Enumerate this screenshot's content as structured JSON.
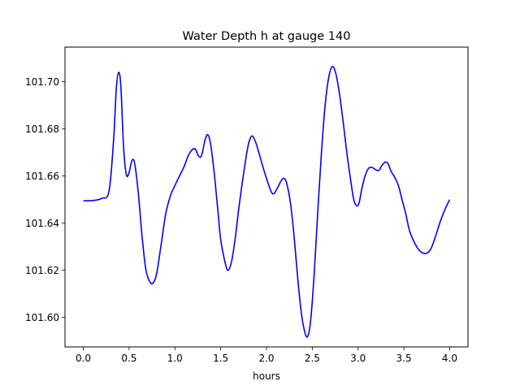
{
  "chart_data": {
    "type": "line",
    "title": "Water Depth h at gauge 140",
    "xlabel": "hours",
    "ylabel": "",
    "xlim": [
      -0.2,
      4.2
    ],
    "ylim": [
      101.5875,
      101.7147
    ],
    "grid": false,
    "xticks": [
      0.0,
      0.5,
      1.0,
      1.5,
      2.0,
      2.5,
      3.0,
      3.5,
      4.0
    ],
    "xtick_labels": [
      "0.0",
      "0.5",
      "1.0",
      "1.5",
      "2.0",
      "2.5",
      "3.0",
      "3.5",
      "4.0"
    ],
    "yticks": [
      101.6,
      101.62,
      101.64,
      101.66,
      101.68,
      101.7
    ],
    "ytick_labels": [
      "101.60",
      "101.62",
      "101.64",
      "101.66",
      "101.68",
      "101.70"
    ],
    "series": [
      {
        "color": "#0000ff",
        "points": [
          [
            0.0,
            101.6495
          ],
          [
            0.1,
            101.6496
          ],
          [
            0.2,
            101.6505
          ],
          [
            0.28,
            101.6535
          ],
          [
            0.33,
            101.675
          ],
          [
            0.36,
            101.697
          ],
          [
            0.385,
            101.704
          ],
          [
            0.41,
            101.698
          ],
          [
            0.44,
            101.672
          ],
          [
            0.47,
            101.6605
          ],
          [
            0.5,
            101.6615
          ],
          [
            0.53,
            101.6665
          ],
          [
            0.56,
            101.6655
          ],
          [
            0.6,
            101.653
          ],
          [
            0.64,
            101.635
          ],
          [
            0.68,
            101.621
          ],
          [
            0.72,
            101.6155
          ],
          [
            0.76,
            101.6145
          ],
          [
            0.8,
            101.6185
          ],
          [
            0.85,
            101.631
          ],
          [
            0.9,
            101.644
          ],
          [
            0.95,
            101.6515
          ],
          [
            1.0,
            101.656
          ],
          [
            1.05,
            101.66
          ],
          [
            1.1,
            101.664
          ],
          [
            1.15,
            101.669
          ],
          [
            1.2,
            101.6715
          ],
          [
            1.23,
            101.671
          ],
          [
            1.25,
            101.669
          ],
          [
            1.28,
            101.668
          ],
          [
            1.3,
            101.67
          ],
          [
            1.33,
            101.6755
          ],
          [
            1.36,
            101.6775
          ],
          [
            1.39,
            101.6735
          ],
          [
            1.43,
            101.661
          ],
          [
            1.47,
            101.645
          ],
          [
            1.5,
            101.633
          ],
          [
            1.55,
            101.623
          ],
          [
            1.58,
            101.62
          ],
          [
            1.62,
            101.624
          ],
          [
            1.66,
            101.634
          ],
          [
            1.7,
            101.647
          ],
          [
            1.75,
            101.661
          ],
          [
            1.8,
            101.673
          ],
          [
            1.84,
            101.677
          ],
          [
            1.88,
            101.6745
          ],
          [
            1.92,
            101.6695
          ],
          [
            1.96,
            101.664
          ],
          [
            2.0,
            101.659
          ],
          [
            2.05,
            101.6535
          ],
          [
            2.08,
            101.6525
          ],
          [
            2.12,
            101.655
          ],
          [
            2.16,
            101.658
          ],
          [
            2.19,
            101.659
          ],
          [
            2.22,
            101.657
          ],
          [
            2.26,
            101.649
          ],
          [
            2.3,
            101.635
          ],
          [
            2.34,
            101.617
          ],
          [
            2.38,
            101.602
          ],
          [
            2.42,
            101.5935
          ],
          [
            2.45,
            101.592
          ],
          [
            2.48,
            101.598
          ],
          [
            2.52,
            101.618
          ],
          [
            2.56,
            101.645
          ],
          [
            2.6,
            101.67
          ],
          [
            2.64,
            101.69
          ],
          [
            2.68,
            101.702
          ],
          [
            2.72,
            101.7065
          ],
          [
            2.76,
            101.703
          ],
          [
            2.8,
            101.694
          ],
          [
            2.84,
            101.682
          ],
          [
            2.88,
            101.669
          ],
          [
            2.92,
            101.658
          ],
          [
            2.95,
            101.6505
          ],
          [
            2.98,
            101.6475
          ],
          [
            3.01,
            101.6485
          ],
          [
            3.04,
            101.6545
          ],
          [
            3.08,
            101.6605
          ],
          [
            3.12,
            101.6635
          ],
          [
            3.16,
            101.6635
          ],
          [
            3.2,
            101.6625
          ],
          [
            3.23,
            101.6625
          ],
          [
            3.26,
            101.6645
          ],
          [
            3.3,
            101.666
          ],
          [
            3.33,
            101.665
          ],
          [
            3.36,
            101.662
          ],
          [
            3.4,
            101.6595
          ],
          [
            3.44,
            101.656
          ],
          [
            3.48,
            101.65
          ],
          [
            3.52,
            101.644
          ],
          [
            3.56,
            101.637
          ],
          [
            3.6,
            101.633
          ],
          [
            3.64,
            101.63
          ],
          [
            3.68,
            101.628
          ],
          [
            3.72,
            101.6272
          ],
          [
            3.76,
            101.6275
          ],
          [
            3.8,
            101.6295
          ],
          [
            3.85,
            101.635
          ],
          [
            3.9,
            101.641
          ],
          [
            3.95,
            101.646
          ],
          [
            4.0,
            101.65
          ]
        ]
      }
    ]
  }
}
